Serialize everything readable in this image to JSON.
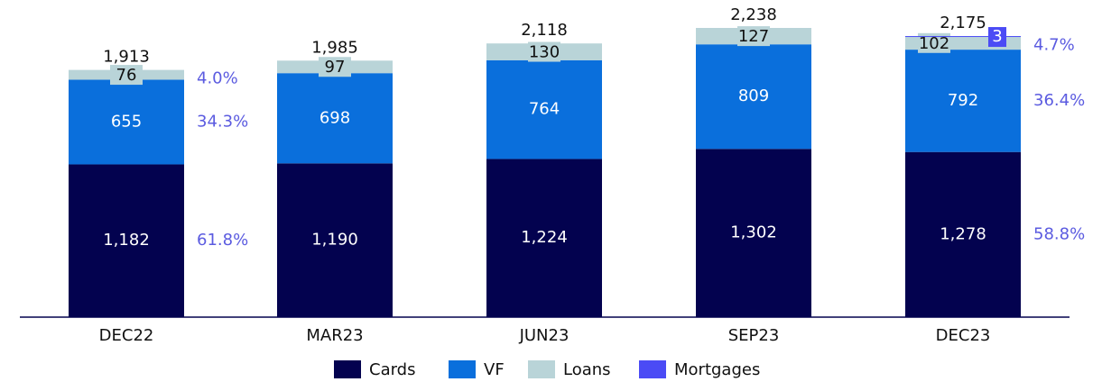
{
  "chart_data": {
    "type": "stacked_bar",
    "categories": [
      "DEC22",
      "MAR23",
      "JUN23",
      "SEP23",
      "DEC23"
    ],
    "series": [
      {
        "name": "Cards",
        "color": "#03024f",
        "values": [
          1182,
          1190,
          1224,
          1302,
          1278
        ],
        "value_labels": [
          "1,182",
          "1,190",
          "1,224",
          "1,302",
          "1,278"
        ],
        "percent_labels": [
          "61.8%",
          null,
          null,
          null,
          "58.8%"
        ]
      },
      {
        "name": "VF",
        "color": "#0a6fdc",
        "values": [
          655,
          698,
          764,
          809,
          792
        ],
        "percent_labels": [
          "34.3%",
          null,
          null,
          null,
          "36.4%"
        ]
      },
      {
        "name": "Loans",
        "color": "#b9d4d8",
        "values": [
          76,
          97,
          130,
          127,
          102
        ],
        "percent_labels": [
          "4.0%",
          null,
          null,
          null,
          "4.7%"
        ]
      },
      {
        "name": "Mortgages",
        "color": "#4b4bf5",
        "values": [
          null,
          null,
          null,
          null,
          3
        ]
      }
    ],
    "totals": [
      {
        "value": 1913,
        "label": "1,913"
      },
      {
        "value": 1985,
        "label": "1,985"
      },
      {
        "value": 2118,
        "label": "2,118"
      },
      {
        "value": 2238,
        "label": "2,238"
      },
      {
        "value": 2175,
        "label": "2,175"
      }
    ]
  }
}
